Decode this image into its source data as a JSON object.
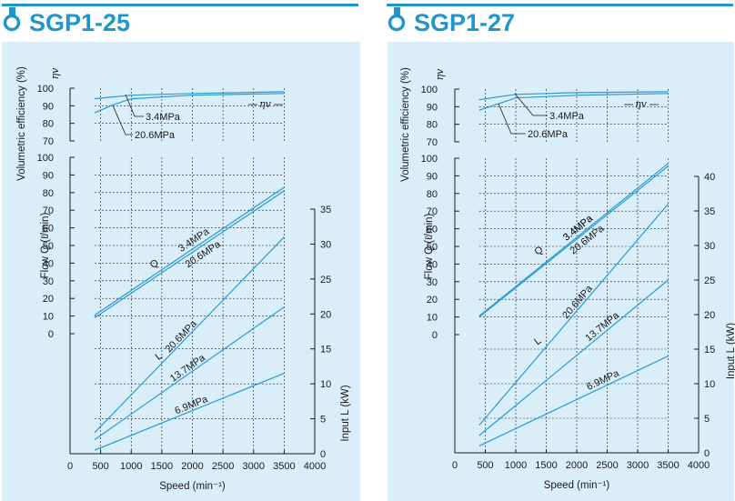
{
  "panels": [
    {
      "title": "SGP1-25",
      "chart_data": {
        "type": "line",
        "xlabel": "Speed (min⁻¹)",
        "x_ticks": [
          0,
          500,
          1000,
          1500,
          2000,
          2500,
          3000,
          3500,
          4000
        ],
        "xlim": [
          0,
          4000
        ],
        "eff_axis": {
          "label": "Volumetric efficiency (%)",
          "symbol": "ηv",
          "ticks": [
            70,
            80,
            90,
            100
          ],
          "ylim": [
            70,
            100
          ]
        },
        "flow_axis": {
          "label": "Flow Q (ℓ/min)",
          "ticks": [
            0,
            10,
            20,
            30,
            40,
            50,
            60,
            70,
            80,
            90,
            100
          ],
          "ylim": [
            0,
            100
          ]
        },
        "power_axis": {
          "label": "Input L (kW)",
          "ticks": [
            0,
            5,
            10,
            15,
            20,
            25,
            30,
            35
          ],
          "ylim": [
            0,
            35
          ]
        },
        "series": [
          {
            "group": "efficiency",
            "name": "3.4MPa",
            "x": [
              400,
              1000,
              2000,
              3500
            ],
            "y": [
              94,
              96,
              97,
              98
            ]
          },
          {
            "group": "efficiency",
            "name": "20.6MPa",
            "x": [
              400,
              700,
              1000,
              2000,
              3500
            ],
            "y": [
              86,
              90.5,
              94,
              96,
              97
            ]
          },
          {
            "group": "flow",
            "name": "3.4MPa",
            "x": [
              400,
              3500
            ],
            "y": [
              10.5,
              83
            ]
          },
          {
            "group": "flow",
            "name": "20.6MPa",
            "x": [
              400,
              3500
            ],
            "y": [
              9,
              81
            ]
          },
          {
            "group": "power",
            "name": "20.6MPa",
            "x": [
              400,
              3500
            ],
            "y": [
              3,
              31
            ]
          },
          {
            "group": "power",
            "name": "13.7MPa",
            "x": [
              400,
              3500
            ],
            "y": [
              2,
              21
            ]
          },
          {
            "group": "power",
            "name": "6.9MPa",
            "x": [
              400,
              3500
            ],
            "y": [
              0.5,
              11.5
            ]
          }
        ],
        "annotations": {
          "q_label": "Q",
          "l_label": "L",
          "eta_label": "ηv"
        }
      }
    },
    {
      "title": "SGP1-27",
      "chart_data": {
        "type": "line",
        "xlabel": "Speed (min⁻¹)",
        "x_ticks": [
          0,
          500,
          1000,
          1500,
          2000,
          2500,
          3000,
          3500,
          4000
        ],
        "xlim": [
          0,
          4000
        ],
        "eff_axis": {
          "label": "Volumetric efficiency (%)",
          "symbol": "ηv",
          "ticks": [
            70,
            80,
            90,
            100
          ],
          "ylim": [
            70,
            100
          ]
        },
        "flow_axis": {
          "label": "Flow Q (ℓ/min)",
          "ticks": [
            0,
            10,
            20,
            30,
            40,
            50,
            60,
            70,
            80,
            90,
            100
          ],
          "ylim": [
            0,
            100
          ]
        },
        "power_axis": {
          "label": "Input L (kW)",
          "ticks": [
            0,
            5,
            10,
            15,
            20,
            25,
            30,
            35,
            40
          ],
          "ylim": [
            0,
            40
          ]
        },
        "series": [
          {
            "group": "efficiency",
            "name": "3.4MPa",
            "x": [
              400,
              1000,
              2000,
              3500
            ],
            "y": [
              94,
              97,
              98,
              98.5
            ]
          },
          {
            "group": "efficiency",
            "name": "20.6MPa",
            "x": [
              400,
              700,
              1000,
              2000,
              3500
            ],
            "y": [
              88,
              91.5,
              95,
              96.5,
              97.5
            ]
          },
          {
            "group": "flow",
            "name": "3.4MPa",
            "x": [
              400,
              3500
            ],
            "y": [
              10.5,
              97
            ]
          },
          {
            "group": "flow",
            "name": "20.6MPa",
            "x": [
              400,
              3500
            ],
            "y": [
              10,
              95.5
            ]
          },
          {
            "group": "power",
            "name": "20.6MPa",
            "x": [
              400,
              3500
            ],
            "y": [
              4,
              36
            ]
          },
          {
            "group": "power",
            "name": "13.7MPa",
            "x": [
              400,
              3500
            ],
            "y": [
              2.5,
              25
            ]
          },
          {
            "group": "power",
            "name": "6.9MPa",
            "x": [
              400,
              3500
            ],
            "y": [
              1,
              14
            ]
          }
        ],
        "annotations": {
          "q_label": "Q",
          "l_label": "L",
          "eta_label": "ηv"
        }
      }
    }
  ],
  "colors": {
    "title": "#2096c9",
    "panel_bg": "#d9eef9",
    "line": "#2b9ad3",
    "axis": "#1a1a1a",
    "title_rule": "#2096c9"
  }
}
